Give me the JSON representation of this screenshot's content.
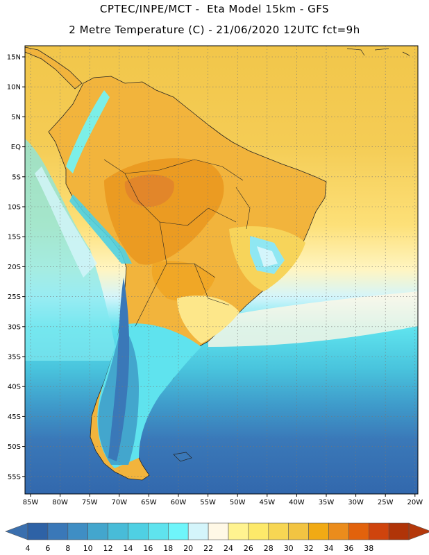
{
  "title_line1": "CPTEC/INPE/MCT -  Eta Model 15km - GFS",
  "title_line2": "2 Metre Temperature (C) - 21/06/2020 12UTC fct=9h",
  "lat_labels": [
    "15N",
    "10N",
    "5N",
    "EQ",
    "5S",
    "10S",
    "15S",
    "20S",
    "25S",
    "30S",
    "35S",
    "40S",
    "45S",
    "50S",
    "55S"
  ],
  "lon_labels": [
    "85W",
    "80W",
    "75W",
    "70W",
    "65W",
    "60W",
    "55W",
    "50W",
    "45W",
    "40W",
    "35W",
    "30W",
    "25W",
    "20W"
  ],
  "colorbar": {
    "labels": [
      "4",
      "6",
      "8",
      "10",
      "12",
      "14",
      "16",
      "18",
      "20",
      "22",
      "24",
      "26",
      "28",
      "30",
      "32",
      "34",
      "36",
      "38"
    ],
    "colors": [
      "#2e62a6",
      "#3a78b8",
      "#3f8ec4",
      "#43a6cd",
      "#48bcd8",
      "#4fd0e3",
      "#5fe3ee",
      "#6ff5fa",
      "#d4f5fb",
      "#fff8e6",
      "#fff390",
      "#fde96a",
      "#f7d653",
      "#f2c442",
      "#f1aa14",
      "#eb8c1c",
      "#e2620c",
      "#cf440d",
      "#b03408"
    ],
    "under_color": "#3a6fae",
    "over_color": "#b4380b"
  }
}
